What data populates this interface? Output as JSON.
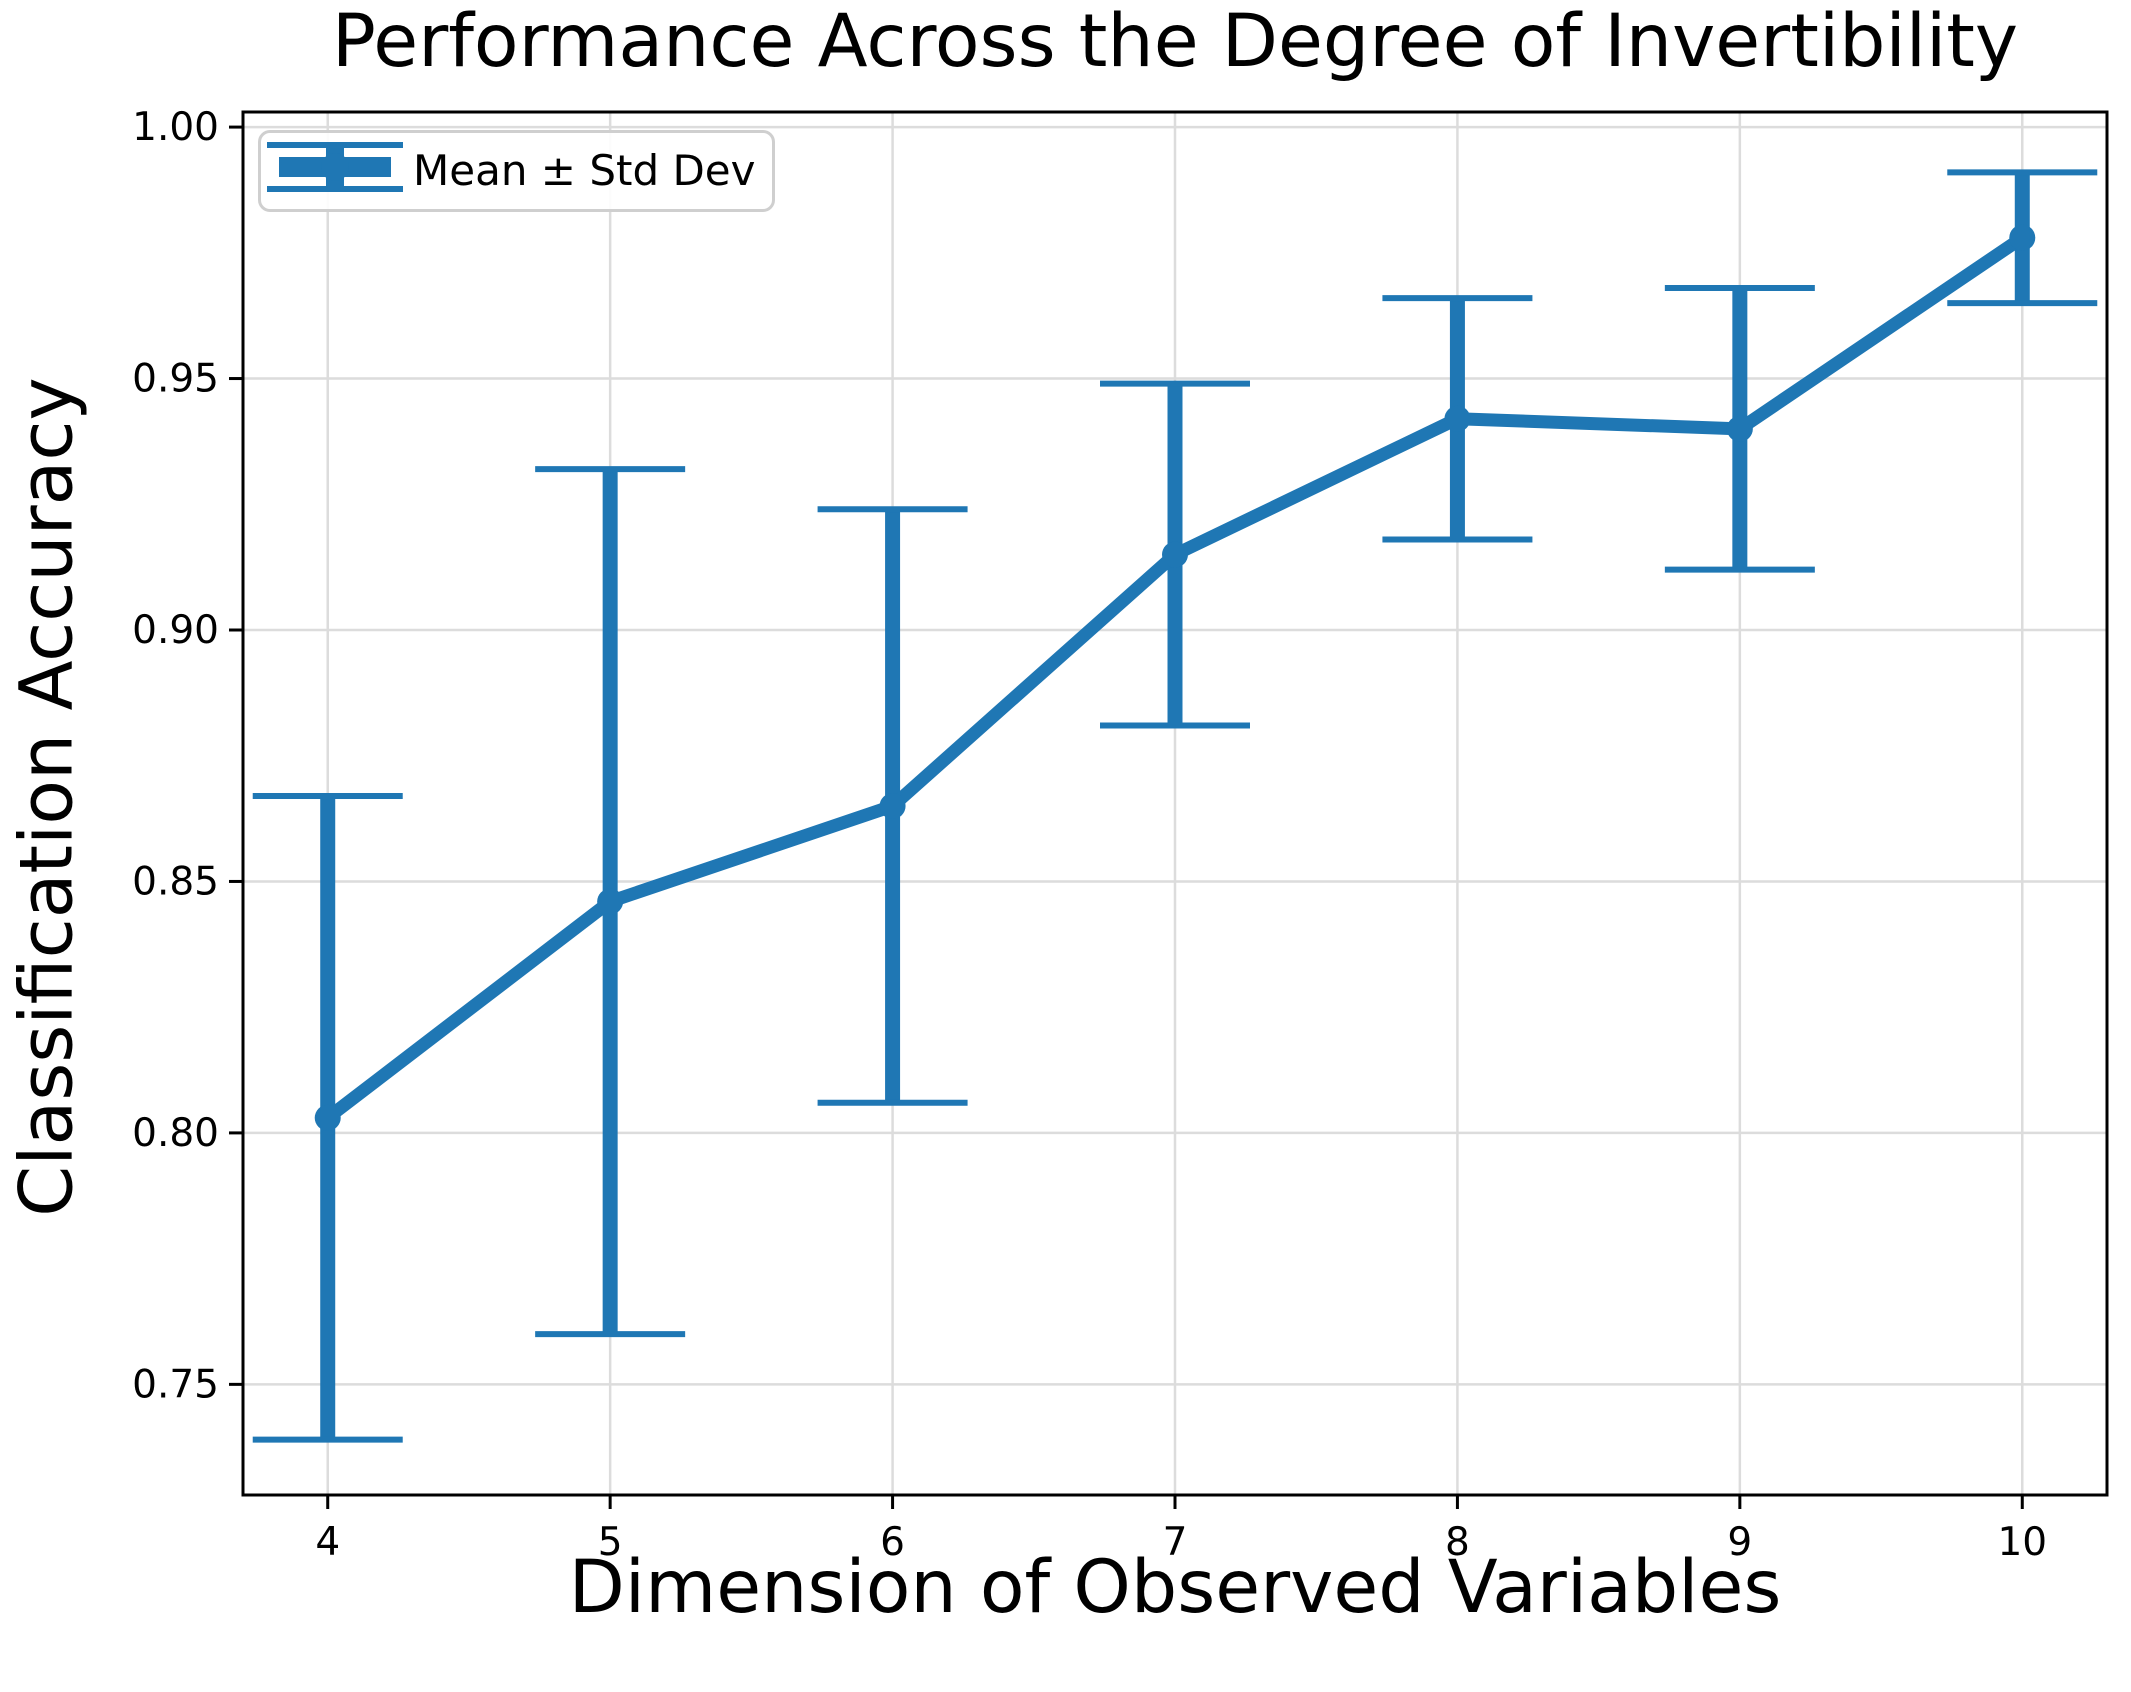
{
  "chart_data": {
    "type": "line",
    "title": "Performance Across the Degree of Invertibility",
    "xlabel": "Dimension of Observed Variables",
    "ylabel": "Classification Accuracy",
    "legend": [
      "Mean ± Std Dev"
    ],
    "legend_location": "upper left",
    "grid": true,
    "marker": "o",
    "x": [
      4,
      5,
      6,
      7,
      8,
      9,
      10
    ],
    "series": [
      {
        "name": "Mean ± Std Dev",
        "mean": [
          0.803,
          0.846,
          0.865,
          0.915,
          0.942,
          0.94,
          0.978
        ],
        "std": [
          0.064,
          0.086,
          0.059,
          0.034,
          0.024,
          0.028,
          0.013
        ],
        "color": "#1f77b4"
      }
    ],
    "xlim": [
      3.7,
      10.3
    ],
    "ylim": [
      0.728,
      1.003
    ],
    "xticks": [
      4,
      5,
      6,
      7,
      8,
      9,
      10
    ],
    "xtick_labels": [
      "4",
      "5",
      "6",
      "7",
      "8",
      "9",
      "10"
    ],
    "yticks": [
      0.75,
      0.8,
      0.85,
      0.9,
      0.95,
      1.0
    ],
    "ytick_labels": [
      "0.75",
      "0.80",
      "0.85",
      "0.90",
      "0.95",
      "1.00"
    ]
  },
  "colors": {
    "line": "#1f77b4",
    "grid": "#dcdcdc",
    "spine": "#000000",
    "tick": "#000000",
    "text": "#000000",
    "legend_border": "#cfcfcf",
    "background": "#ffffff"
  }
}
